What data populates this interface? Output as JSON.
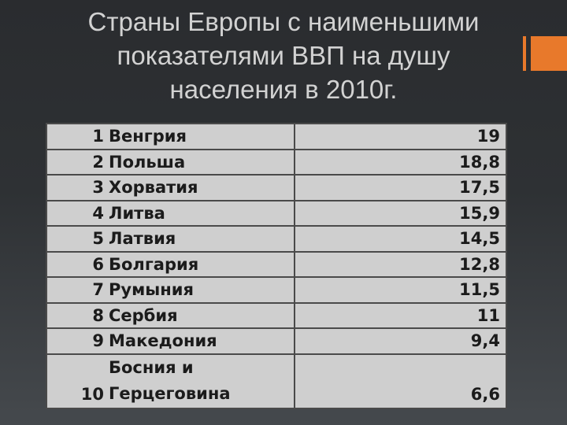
{
  "title": {
    "line1": "Страны Европы с наименьшими",
    "line2": "показателями ВВП на душу",
    "line3": "населения в 2010г."
  },
  "accent_color": "#e8792b",
  "table": {
    "rows": [
      {
        "rank": "1",
        "country": "Венгрия",
        "value": "19"
      },
      {
        "rank": "2",
        "country": "Польша",
        "value": "18,8"
      },
      {
        "rank": "3",
        "country": "Хорватия",
        "value": "17,5"
      },
      {
        "rank": "4",
        "country": "Литва",
        "value": "15,9"
      },
      {
        "rank": "5",
        "country": "Латвия",
        "value": "14,5"
      },
      {
        "rank": "6",
        "country": "Болгария",
        "value": "12,8"
      },
      {
        "rank": "7",
        "country": "Румыния",
        "value": "11,5"
      },
      {
        "rank": "8",
        "country": "Сербия",
        "value": "11"
      },
      {
        "rank": "9",
        "country": "Македония",
        "value": "9,4"
      }
    ],
    "last_row": {
      "rank": "10",
      "country_line1": "Босния и",
      "country_line2": "Герцеговина",
      "value": "6,6"
    }
  }
}
